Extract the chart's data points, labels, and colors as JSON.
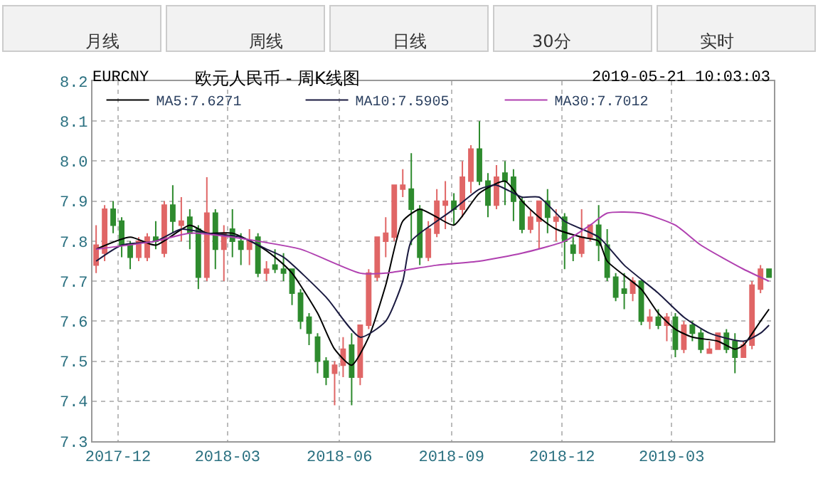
{
  "chart_data": {
    "type": "candlestick",
    "title": "欧元人民币 - 周K线图",
    "subtitle": "EURCNY",
    "annotations": [
      "月线",
      "周线",
      "日线",
      "30分",
      "实时",
      "2019-05-21 10:03:03"
    ],
    "x": [
      "2017-11-13",
      "2017-11-20",
      "2017-11-27",
      "2017-12-04",
      "2017-12-11",
      "2017-12-18",
      "2017-12-25",
      "2018-01-01",
      "2018-01-08",
      "2018-01-15",
      "2018-01-22",
      "2018-01-29",
      "2018-02-05",
      "2018-02-12",
      "2018-02-19",
      "2018-02-26",
      "2018-03-05",
      "2018-03-12",
      "2018-03-19",
      "2018-03-26",
      "2018-04-02",
      "2018-04-09",
      "2018-04-16",
      "2018-04-23",
      "2018-04-30",
      "2018-05-07",
      "2018-05-14",
      "2018-05-21",
      "2018-05-28",
      "2018-06-04",
      "2018-06-11",
      "2018-06-18",
      "2018-06-25",
      "2018-07-02",
      "2018-07-09",
      "2018-07-16",
      "2018-07-23",
      "2018-07-30",
      "2018-08-06",
      "2018-08-13",
      "2018-08-20",
      "2018-08-27",
      "2018-09-03",
      "2018-09-10",
      "2018-09-17",
      "2018-09-24",
      "2018-10-01",
      "2018-10-08",
      "2018-10-15",
      "2018-10-22",
      "2018-10-29",
      "2018-11-05",
      "2018-11-12",
      "2018-11-19",
      "2018-11-26",
      "2018-12-03",
      "2018-12-10",
      "2018-12-17",
      "2018-12-24",
      "2018-12-31",
      "2019-01-07",
      "2019-01-14",
      "2019-01-21",
      "2019-01-28",
      "2019-02-04",
      "2019-02-11",
      "2019-02-18",
      "2019-02-25",
      "2019-03-04",
      "2019-03-11",
      "2019-03-18",
      "2019-03-25",
      "2019-04-01",
      "2019-04-08",
      "2019-04-15",
      "2019-04-22",
      "2019-04-29",
      "2019-05-06",
      "2019-05-13",
      "2019-05-20"
    ],
    "ohlc": [
      [
        7.74,
        7.84,
        7.72,
        7.79
      ],
      [
        7.77,
        7.89,
        7.75,
        7.88
      ],
      [
        7.88,
        7.9,
        7.82,
        7.84
      ],
      [
        7.85,
        7.86,
        7.76,
        7.79
      ],
      [
        7.79,
        7.8,
        7.73,
        7.76
      ],
      [
        7.76,
        7.81,
        7.75,
        7.8
      ],
      [
        7.76,
        7.82,
        7.75,
        7.81
      ],
      [
        7.81,
        7.85,
        7.78,
        7.8
      ],
      [
        7.77,
        7.9,
        7.76,
        7.89
      ],
      [
        7.89,
        7.94,
        7.82,
        7.85
      ],
      [
        7.84,
        7.91,
        7.8,
        7.85
      ],
      [
        7.86,
        7.88,
        7.78,
        7.82
      ],
      [
        7.83,
        7.84,
        7.68,
        7.71
      ],
      [
        7.71,
        7.96,
        7.7,
        7.87
      ],
      [
        7.87,
        7.88,
        7.73,
        7.78
      ],
      [
        7.78,
        7.84,
        7.7,
        7.82
      ],
      [
        7.83,
        7.88,
        7.76,
        7.8
      ],
      [
        7.8,
        7.82,
        7.74,
        7.78
      ],
      [
        7.78,
        7.83,
        7.74,
        7.8
      ],
      [
        7.81,
        7.82,
        7.71,
        7.72
      ],
      [
        7.72,
        7.75,
        7.7,
        7.73
      ],
      [
        7.74,
        7.78,
        7.72,
        7.73
      ],
      [
        7.73,
        7.77,
        7.7,
        7.72
      ],
      [
        7.73,
        7.73,
        7.64,
        7.67
      ],
      [
        7.67,
        7.68,
        7.58,
        7.6
      ],
      [
        7.61,
        7.62,
        7.54,
        7.57
      ],
      [
        7.56,
        7.57,
        7.47,
        7.5
      ],
      [
        7.5,
        7.51,
        7.44,
        7.46
      ],
      [
        7.47,
        7.5,
        7.39,
        7.49
      ],
      [
        7.49,
        7.56,
        7.46,
        7.53
      ],
      [
        7.54,
        7.57,
        7.39,
        7.46
      ],
      [
        7.46,
        7.59,
        7.44,
        7.59
      ],
      [
        7.59,
        7.73,
        7.58,
        7.72
      ],
      [
        7.71,
        7.81,
        7.7,
        7.81
      ],
      [
        7.8,
        7.86,
        7.76,
        7.82
      ],
      [
        7.81,
        7.94,
        7.8,
        7.94
      ],
      [
        7.93,
        7.98,
        7.91,
        7.94
      ],
      [
        7.93,
        8.02,
        7.79,
        7.88
      ],
      [
        7.88,
        7.89,
        7.74,
        7.76
      ],
      [
        7.76,
        7.85,
        7.75,
        7.83
      ],
      [
        7.82,
        7.93,
        7.81,
        7.9
      ],
      [
        7.89,
        7.95,
        7.83,
        7.9
      ],
      [
        7.9,
        7.92,
        7.84,
        7.88
      ],
      [
        7.88,
        8.0,
        7.86,
        7.96
      ],
      [
        7.95,
        8.04,
        7.92,
        8.03
      ],
      [
        8.03,
        8.1,
        7.94,
        7.95
      ],
      [
        7.95,
        7.97,
        7.86,
        7.89
      ],
      [
        7.89,
        7.99,
        7.88,
        7.96
      ],
      [
        7.97,
        8.0,
        7.89,
        7.95
      ],
      [
        7.96,
        7.98,
        7.85,
        7.9
      ],
      [
        7.9,
        7.91,
        7.82,
        7.83
      ],
      [
        7.83,
        7.88,
        7.82,
        7.86
      ],
      [
        7.85,
        7.9,
        7.78,
        7.9
      ],
      [
        7.9,
        7.93,
        7.82,
        7.86
      ],
      [
        7.85,
        7.88,
        7.8,
        7.86
      ],
      [
        7.86,
        7.87,
        7.73,
        7.8
      ],
      [
        7.79,
        7.81,
        7.75,
        7.77
      ],
      [
        7.77,
        7.88,
        7.76,
        7.81
      ],
      [
        7.81,
        7.84,
        7.8,
        7.84
      ],
      [
        7.84,
        7.89,
        7.75,
        7.79
      ],
      [
        7.79,
        7.83,
        7.7,
        7.71
      ],
      [
        7.71,
        7.72,
        7.65,
        7.66
      ],
      [
        7.68,
        7.72,
        7.63,
        7.67
      ],
      [
        7.67,
        7.71,
        7.65,
        7.7
      ],
      [
        7.7,
        7.7,
        7.59,
        7.6
      ],
      [
        7.6,
        7.63,
        7.58,
        7.61
      ],
      [
        7.61,
        7.63,
        7.58,
        7.59
      ],
      [
        7.59,
        7.62,
        7.55,
        7.61
      ],
      [
        7.61,
        7.62,
        7.51,
        7.53
      ],
      [
        7.53,
        7.6,
        7.52,
        7.59
      ],
      [
        7.59,
        7.6,
        7.55,
        7.57
      ],
      [
        7.57,
        7.58,
        7.52,
        7.53
      ],
      [
        7.52,
        7.55,
        7.52,
        7.53
      ],
      [
        7.53,
        7.57,
        7.53,
        7.57
      ],
      [
        7.57,
        7.58,
        7.52,
        7.53
      ],
      [
        7.55,
        7.57,
        7.47,
        7.51
      ],
      [
        7.51,
        7.55,
        7.51,
        7.54
      ],
      [
        7.54,
        7.7,
        7.53,
        7.69
      ],
      [
        7.68,
        7.74,
        7.67,
        7.73
      ],
      [
        7.73,
        7.73,
        7.71,
        7.71
      ]
    ],
    "colors": [
      "#e06666",
      "#e06666",
      "#2e8b2e",
      "#2e8b2e",
      "#2e8b2e",
      "#e06666",
      "#e06666",
      "#2e8b2e",
      "#e06666",
      "#2e8b2e",
      "#e06666",
      "#2e8b2e",
      "#2e8b2e",
      "#e06666",
      "#2e8b2e",
      "#e06666",
      "#2e8b2e",
      "#2e8b2e",
      "#e06666",
      "#2e8b2e",
      "#e06666",
      "#2e8b2e",
      "#2e8b2e",
      "#2e8b2e",
      "#2e8b2e",
      "#2e8b2e",
      "#2e8b2e",
      "#2e8b2e",
      "#e06666",
      "#e06666",
      "#2e8b2e",
      "#e06666",
      "#e06666",
      "#e06666",
      "#e06666",
      "#e06666",
      "#e06666",
      "#2e8b2e",
      "#2e8b2e",
      "#e06666",
      "#e06666",
      "#e06666",
      "#2e8b2e",
      "#e06666",
      "#e06666",
      "#2e8b2e",
      "#2e8b2e",
      "#e06666",
      "#2e8b2e",
      "#2e8b2e",
      "#2e8b2e",
      "#e06666",
      "#e06666",
      "#2e8b2e",
      "#e06666",
      "#2e8b2e",
      "#2e8b2e",
      "#e06666",
      "#e06666",
      "#2e8b2e",
      "#2e8b2e",
      "#2e8b2e",
      "#2e8b2e",
      "#e06666",
      "#2e8b2e",
      "#e06666",
      "#2e8b2e",
      "#e06666",
      "#2e8b2e",
      "#e06666",
      "#2e8b2e",
      "#2e8b2e",
      "#e06666",
      "#e06666",
      "#2e8b2e",
      "#2e8b2e",
      "#e06666",
      "#e06666",
      "#e06666",
      "#2e8b2e"
    ],
    "series": [
      {
        "type": "line",
        "name": "MA5:7.6271",
        "color": "#000000",
        "x": [
          "2017-11-13",
          "2017-12-11",
          "2018-01-01",
          "2018-01-29",
          "2018-02-12",
          "2018-03-05",
          "2018-03-26",
          "2018-04-09",
          "2018-04-23",
          "2018-05-14",
          "2018-05-28",
          "2018-06-11",
          "2018-06-25",
          "2018-07-09",
          "2018-07-23",
          "2018-08-06",
          "2018-08-20",
          "2018-09-03",
          "2018-09-24",
          "2018-10-15",
          "2018-10-29",
          "2018-11-12",
          "2018-11-26",
          "2018-12-17",
          "2018-12-31",
          "2019-01-07",
          "2019-02-04",
          "2019-02-18",
          "2019-03-04",
          "2019-03-18",
          "2019-04-08",
          "2019-04-22",
          "2019-04-29",
          "2019-05-13",
          "2019-05-20"
        ],
        "values": [
          7.78,
          7.81,
          7.79,
          7.84,
          7.82,
          7.82,
          7.79,
          7.76,
          7.72,
          7.62,
          7.53,
          7.49,
          7.56,
          7.69,
          7.85,
          7.88,
          7.86,
          7.84,
          7.92,
          7.95,
          7.9,
          7.86,
          7.83,
          7.81,
          7.8,
          7.75,
          7.68,
          7.62,
          7.58,
          7.56,
          7.55,
          7.53,
          7.54,
          7.6,
          7.63
        ]
      },
      {
        "type": "line",
        "name": "MA10:7.5905",
        "color": "#1a1a40",
        "x": [
          "2017-11-13",
          "2017-12-04",
          "2018-01-01",
          "2018-01-22",
          "2018-02-12",
          "2018-03-12",
          "2018-04-02",
          "2018-04-16",
          "2018-05-21",
          "2018-06-18",
          "2018-07-09",
          "2018-07-23",
          "2018-07-30",
          "2018-08-20",
          "2018-09-03",
          "2018-09-24",
          "2018-10-08",
          "2018-10-29",
          "2018-11-12",
          "2018-12-03",
          "2018-12-31",
          "2019-01-21",
          "2019-02-18",
          "2019-03-11",
          "2019-04-01",
          "2019-04-29",
          "2019-05-13",
          "2019-05-20"
        ],
        "values": [
          7.75,
          7.79,
          7.8,
          7.83,
          7.82,
          7.81,
          7.78,
          7.76,
          7.66,
          7.56,
          7.6,
          7.7,
          7.8,
          7.85,
          7.88,
          7.93,
          7.94,
          7.91,
          7.91,
          7.85,
          7.81,
          7.74,
          7.67,
          7.61,
          7.57,
          7.55,
          7.57,
          7.59
        ]
      },
      {
        "type": "line",
        "name": "MA30:7.7012",
        "color": "#b040b0",
        "x": [
          "2017-11-13",
          "2018-01-01",
          "2018-01-29",
          "2018-03-05",
          "2018-03-26",
          "2018-04-30",
          "2018-06-18",
          "2018-07-09",
          "2018-07-30",
          "2018-08-20",
          "2018-09-24",
          "2018-10-29",
          "2018-12-03",
          "2018-12-24",
          "2019-01-07",
          "2019-02-04",
          "2019-03-04",
          "2019-03-25",
          "2019-04-29",
          "2019-05-20"
        ],
        "values": [
          7.78,
          7.8,
          7.82,
          7.81,
          7.8,
          7.78,
          7.72,
          7.72,
          7.73,
          7.74,
          7.75,
          7.77,
          7.8,
          7.84,
          7.87,
          7.87,
          7.84,
          7.79,
          7.73,
          7.7
        ]
      }
    ],
    "xlim": [
      "2017-11-10",
      "2019-05-24"
    ],
    "xticks": [
      "2017-12",
      "2018-03",
      "2018-06",
      "2018-09",
      "2018-12",
      "2019-03"
    ],
    "ylim": [
      7.3,
      8.2
    ],
    "yticks": [
      7.3,
      7.4,
      7.5,
      7.6,
      7.7,
      7.8,
      7.9,
      {
        "value": 8.0,
        "label": "8.0"
      },
      8.1,
      8.2
    ],
    "grid": true,
    "legend": "top left"
  }
}
